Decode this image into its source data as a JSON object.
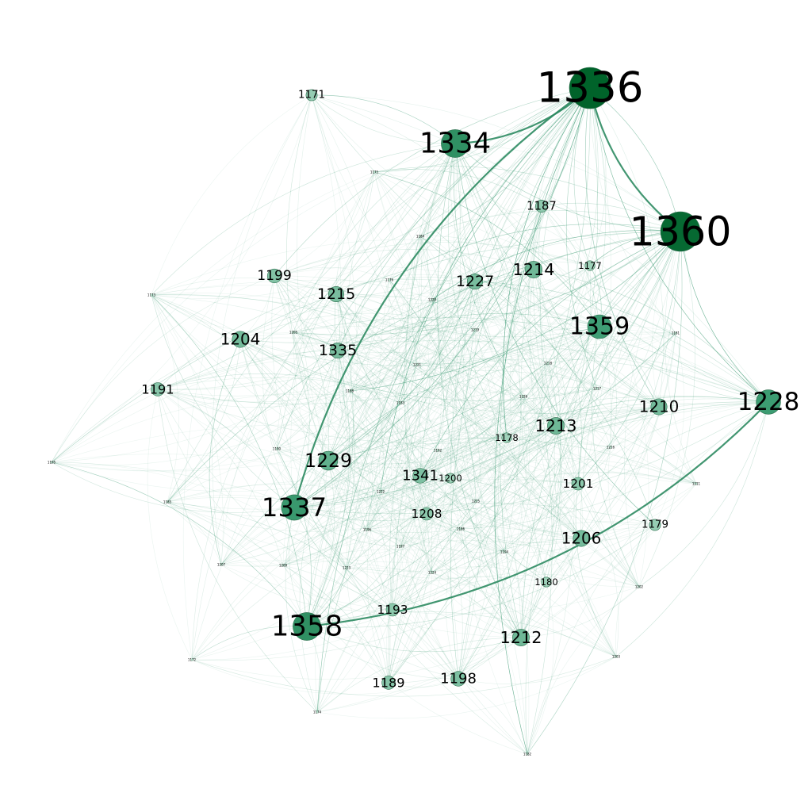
{
  "graph": {
    "edge_color": "#3a9a72",
    "edge_strong_color": "#2e8b62",
    "node_color_max": "#00632a",
    "node_color_mid": "#3f9e75",
    "node_color_min": "#b7dfcb",
    "nodes": [
      {
        "id": "1336",
        "weight": 1.0
      },
      {
        "id": "1360",
        "weight": 0.95
      },
      {
        "id": "1334",
        "weight": 0.62
      },
      {
        "id": "1358",
        "weight": 0.62
      },
      {
        "id": "1337",
        "weight": 0.55
      },
      {
        "id": "1228",
        "weight": 0.52
      },
      {
        "id": "1359",
        "weight": 0.5
      },
      {
        "id": "1229",
        "weight": 0.36
      },
      {
        "id": "1213",
        "weight": 0.3
      },
      {
        "id": "1214",
        "weight": 0.3
      },
      {
        "id": "1212",
        "weight": 0.3
      },
      {
        "id": "1210",
        "weight": 0.28
      },
      {
        "id": "1206",
        "weight": 0.28
      },
      {
        "id": "1204",
        "weight": 0.28
      },
      {
        "id": "1215",
        "weight": 0.26
      },
      {
        "id": "1335",
        "weight": 0.26
      },
      {
        "id": "1227",
        "weight": 0.26
      },
      {
        "id": "1341",
        "weight": 0.24
      },
      {
        "id": "1198",
        "weight": 0.24
      },
      {
        "id": "1199",
        "weight": 0.22
      },
      {
        "id": "1191",
        "weight": 0.2
      },
      {
        "id": "1189",
        "weight": 0.2
      },
      {
        "id": "1201",
        "weight": 0.18
      },
      {
        "id": "1193",
        "weight": 0.18
      },
      {
        "id": "1208",
        "weight": 0.18
      },
      {
        "id": "1187",
        "weight": 0.17
      },
      {
        "id": "1179",
        "weight": 0.14
      },
      {
        "id": "1171",
        "weight": 0.14
      },
      {
        "id": "1200",
        "weight": 0.1
      },
      {
        "id": "1178",
        "weight": 0.1
      },
      {
        "id": "1177",
        "weight": 0.1
      },
      {
        "id": "1180",
        "weight": 0.1
      }
    ],
    "minor_nodes": [
      "1184",
      "1176",
      "1205",
      "1188",
      "1183",
      "1190",
      "1192",
      "1185",
      "1196",
      "1197",
      "1186",
      "1194",
      "1181",
      "1182",
      "1175",
      "1173",
      "1195",
      "1172",
      "1174",
      "1203",
      "1202",
      "1207",
      "1209",
      "1211",
      "1216",
      "1217",
      "1218",
      "1219",
      "1220",
      "1221",
      "1222",
      "1223",
      "1224",
      "1225",
      "1226"
    ]
  }
}
